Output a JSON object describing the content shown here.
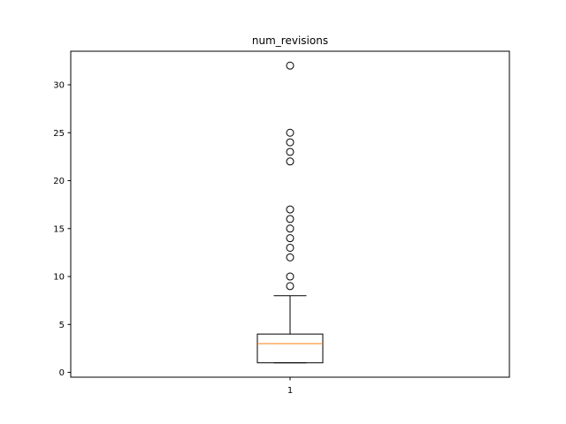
{
  "chart_data": {
    "type": "box",
    "title": "num_revisions",
    "xlabel": "",
    "ylabel": "",
    "categories": [
      "1"
    ],
    "ylim": [
      -0.5,
      33.5
    ],
    "yticks": [
      0,
      5,
      10,
      15,
      20,
      25,
      30
    ],
    "grid": false,
    "box": {
      "whisker_low": 1,
      "q1": 1,
      "median": 3,
      "q3": 4,
      "whisker_high": 8
    },
    "outliers": [
      9,
      10,
      12,
      13,
      14,
      15,
      16,
      17,
      22,
      23,
      24,
      25,
      32
    ],
    "colors": {
      "median": "#ff7f0e",
      "box": "#000000",
      "outlier": "#000000"
    }
  }
}
